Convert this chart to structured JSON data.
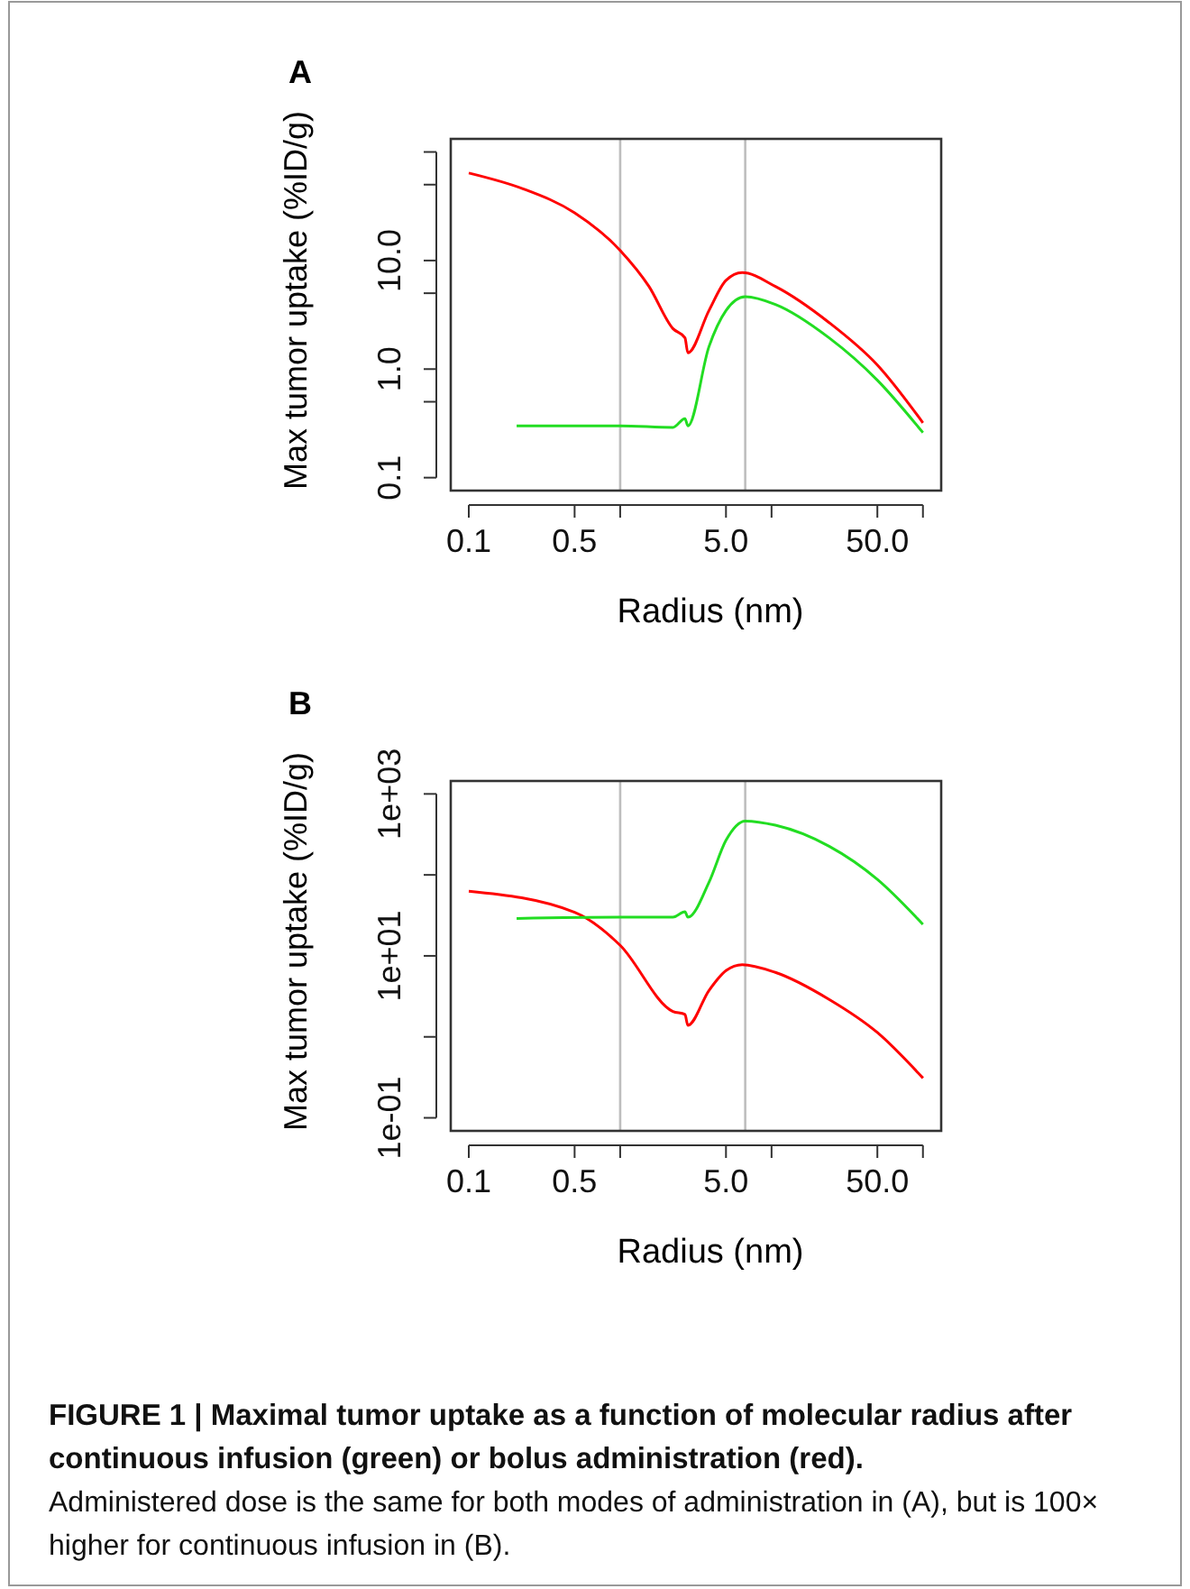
{
  "chart_data": [
    {
      "type": "line",
      "title": "A",
      "xlabel": "Radius (nm)",
      "ylabel": "Max tumor uptake (%ID/g)",
      "log": "xy",
      "xlim": [
        0.076,
        132
      ],
      "ylim": [
        0.076,
        132
      ],
      "xticks": [
        {
          "value": 0.1,
          "label": "0.1"
        },
        {
          "value": 0.5,
          "label": "0.5"
        },
        {
          "value": 1,
          "label": null
        },
        {
          "value": 5,
          "label": "5.0"
        },
        {
          "value": 10,
          "label": null
        },
        {
          "value": 50,
          "label": "50.0"
        },
        {
          "value": 100,
          "label": null
        }
      ],
      "yticks": [
        0.1,
        {
          "value": 0.5,
          "label": null
        },
        {
          "value": 1,
          "label": "1.0"
        },
        {
          "value": 5,
          "label": null
        },
        {
          "value": 10,
          "label": "10.0"
        },
        {
          "value": 50,
          "label": null
        },
        {
          "value": 100,
          "label": null
        }
      ],
      "ref_lines": [
        {
          "axis": "x",
          "value": 1,
          "color": "#bebebe"
        },
        {
          "axis": "x",
          "value": 6.7,
          "color": "#bebebe"
        }
      ],
      "series": [
        {
          "color": "#ff0000",
          "x": [
            0.1,
            0.228,
            0.5,
            1,
            1.55,
            2.23,
            2.68,
            2.8,
            3.86,
            5,
            6.4,
            10.6,
            24,
            50,
            100
          ],
          "values": [
            64,
            45.8,
            27.5,
            12.4,
            5.77,
            2.36,
            1.94,
            1.41,
            3.46,
            6.56,
            7.74,
            5.77,
            2.68,
            1.09,
            0.32
          ]
        },
        {
          "color": "#22dd22",
          "x": [
            0.207,
            1,
            2.23,
            2.68,
            2.8,
            3.86,
            5,
            6.7,
            10.6,
            24,
            50,
            100
          ],
          "values": [
            0.3,
            0.3,
            0.29,
            0.35,
            0.3,
            1.61,
            3.46,
            4.64,
            3.94,
            1.94,
            0.79,
            0.26
          ]
        }
      ]
    },
    {
      "type": "line",
      "title": "B",
      "xlabel": "Radius (nm)",
      "ylabel": "Max tumor uptake (%ID/g)",
      "log": "xy",
      "xlim": [
        0.076,
        132
      ],
      "ylim": [
        0.069,
        1445
      ],
      "xticks": [
        {
          "value": 0.1,
          "label": "0.1"
        },
        {
          "value": 0.5,
          "label": "0.5"
        },
        {
          "value": 1,
          "label": null
        },
        {
          "value": 5,
          "label": "5.0"
        },
        {
          "value": 10,
          "label": null
        },
        {
          "value": 50,
          "label": "50.0"
        },
        {
          "value": 100,
          "label": null
        }
      ],
      "yticks": [
        {
          "value": 0.1,
          "label": "1e-01"
        },
        {
          "value": 1,
          "label": null
        },
        {
          "value": 10,
          "label": "1e+01"
        },
        {
          "value": 100,
          "label": null
        },
        {
          "value": 1000,
          "label": "1e+03"
        }
      ],
      "ref_lines": [
        {
          "axis": "x",
          "value": 1,
          "color": "#bebebe"
        },
        {
          "axis": "x",
          "value": 6.7,
          "color": "#bebebe"
        }
      ],
      "series": [
        {
          "color": "#ff0000",
          "x": [
            0.1,
            0.5,
            1,
            2.23,
            2.68,
            2.8,
            3.86,
            5,
            6.4,
            10.6,
            24,
            50,
            100
          ],
          "values": [
            62.8,
            34.5,
            13.5,
            2.06,
            1.89,
            1.39,
            3.74,
            6.58,
            7.8,
            6.25,
            2.9,
            1.13,
            0.31
          ]
        },
        {
          "color": "#22dd22",
          "x": [
            0.207,
            1,
            2.23,
            2.68,
            2.8,
            3.86,
            5,
            6.7,
            10.6,
            24,
            50,
            100
          ],
          "values": [
            29,
            30,
            30,
            35,
            30,
            81,
            268,
            463,
            411,
            226,
            88,
            24.5
          ]
        }
      ],
      "annotations": [
        "FIGURE 1 | Maximal tumor uptake as a function of molecular radius after continuous infusion (green) or bolus administration (red).",
        "Administered dose is the same for both modes of administration in (A), but is 100× higher for continuous infusion in (B)."
      ]
    }
  ]
}
